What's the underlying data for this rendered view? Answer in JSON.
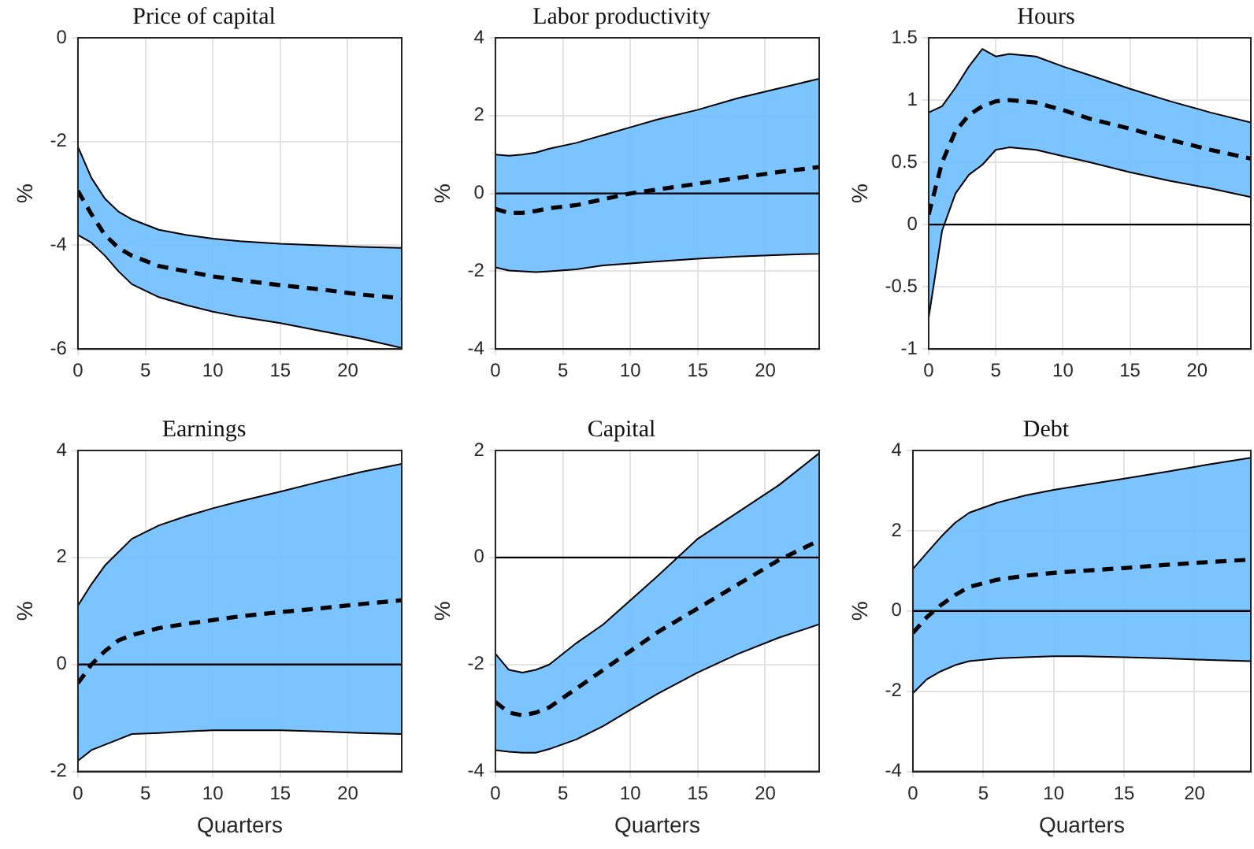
{
  "chart_data": [
    {
      "type": "line",
      "title": "Price of capital",
      "ylabel": "%",
      "xlim": [
        0,
        24
      ],
      "xticks": [
        0,
        5,
        10,
        15,
        20
      ],
      "ylim": [
        -6,
        0
      ],
      "yticks": [
        -6,
        -4,
        -2,
        0
      ],
      "grid": true,
      "legend": false,
      "x": [
        0,
        1,
        2,
        3,
        4,
        6,
        8,
        10,
        12,
        15,
        18,
        21,
        24
      ],
      "series": [
        {
          "color": "#000000",
          "line_style": "dashed",
          "values": [
            -2.95,
            -3.4,
            -3.8,
            -4.05,
            -4.2,
            -4.4,
            -4.5,
            -4.6,
            -4.67,
            -4.77,
            -4.85,
            -4.95,
            -5.02
          ],
          "upper": [
            -2.1,
            -2.7,
            -3.1,
            -3.35,
            -3.5,
            -3.7,
            -3.8,
            -3.87,
            -3.92,
            -3.97,
            -4.0,
            -4.03,
            -4.05
          ],
          "lower": [
            -3.8,
            -3.95,
            -4.2,
            -4.5,
            -4.75,
            -5.0,
            -5.15,
            -5.28,
            -5.38,
            -5.5,
            -5.65,
            -5.8,
            -5.98
          ]
        }
      ]
    },
    {
      "type": "line",
      "title": "Labor productivity",
      "ylabel": "%",
      "xlim": [
        0,
        24
      ],
      "xticks": [
        0,
        5,
        10,
        15,
        20
      ],
      "ylim": [
        -4,
        4
      ],
      "yticks": [
        -4,
        -2,
        0,
        2,
        4
      ],
      "grid": true,
      "legend": false,
      "x": [
        0,
        1,
        2,
        3,
        4,
        6,
        8,
        10,
        12,
        15,
        18,
        21,
        24
      ],
      "ref_lines": [
        {
          "axis": "y",
          "value": 0,
          "color": "#000000"
        }
      ],
      "series": [
        {
          "color": "#000000",
          "line_style": "dashed",
          "values": [
            -0.4,
            -0.5,
            -0.5,
            -0.45,
            -0.38,
            -0.3,
            -0.15,
            0,
            0.1,
            0.25,
            0.4,
            0.55,
            0.68
          ],
          "upper": [
            1.0,
            0.97,
            1.0,
            1.05,
            1.15,
            1.3,
            1.5,
            1.7,
            1.9,
            2.15,
            2.45,
            2.7,
            2.95
          ],
          "lower": [
            -1.9,
            -1.98,
            -2.0,
            -2.02,
            -2.0,
            -1.95,
            -1.85,
            -1.8,
            -1.75,
            -1.68,
            -1.62,
            -1.58,
            -1.55
          ]
        }
      ]
    },
    {
      "type": "line",
      "title": "Hours",
      "ylabel": "%",
      "xlim": [
        0,
        24
      ],
      "xticks": [
        0,
        5,
        10,
        15,
        20
      ],
      "ylim": [
        -1,
        1.5
      ],
      "yticks": [
        -1,
        -0.5,
        0,
        0.5,
        1,
        1.5
      ],
      "grid": true,
      "legend": false,
      "x": [
        0,
        1,
        2,
        3,
        4,
        5,
        6,
        8,
        10,
        12,
        15,
        18,
        21,
        24
      ],
      "ref_lines": [
        {
          "axis": "y",
          "value": 0,
          "color": "#000000"
        }
      ],
      "series": [
        {
          "color": "#000000",
          "line_style": "dashed",
          "values": [
            0.08,
            0.5,
            0.75,
            0.88,
            0.95,
            0.99,
            1.0,
            0.98,
            0.92,
            0.85,
            0.77,
            0.68,
            0.6,
            0.53
          ],
          "upper": [
            0.9,
            0.95,
            1.1,
            1.27,
            1.41,
            1.35,
            1.37,
            1.35,
            1.27,
            1.2,
            1.09,
            0.99,
            0.9,
            0.82
          ],
          "lower": [
            -0.75,
            -0.05,
            0.25,
            0.4,
            0.48,
            0.6,
            0.62,
            0.6,
            0.55,
            0.5,
            0.42,
            0.35,
            0.29,
            0.22
          ]
        }
      ]
    },
    {
      "type": "line",
      "title": "Earnings",
      "xlabel": "Quarters",
      "ylabel": "%",
      "xlim": [
        0,
        24
      ],
      "xticks": [
        0,
        5,
        10,
        15,
        20
      ],
      "ylim": [
        -2,
        4
      ],
      "yticks": [
        -2,
        0,
        2,
        4
      ],
      "grid": true,
      "legend": false,
      "x": [
        0,
        1,
        2,
        3,
        4,
        6,
        8,
        10,
        12,
        15,
        18,
        21,
        24
      ],
      "ref_lines": [
        {
          "axis": "y",
          "value": 0,
          "color": "#000000"
        }
      ],
      "series": [
        {
          "color": "#000000",
          "line_style": "dashed",
          "values": [
            -0.35,
            0.0,
            0.25,
            0.45,
            0.55,
            0.68,
            0.76,
            0.83,
            0.9,
            0.98,
            1.05,
            1.13,
            1.2
          ],
          "upper": [
            1.1,
            1.5,
            1.85,
            2.1,
            2.35,
            2.6,
            2.77,
            2.92,
            3.05,
            3.23,
            3.42,
            3.6,
            3.75
          ],
          "lower": [
            -1.8,
            -1.6,
            -1.5,
            -1.4,
            -1.3,
            -1.28,
            -1.25,
            -1.23,
            -1.23,
            -1.23,
            -1.25,
            -1.28,
            -1.3
          ]
        }
      ]
    },
    {
      "type": "line",
      "title": "Capital",
      "xlabel": "Quarters",
      "ylabel": "%",
      "xlim": [
        0,
        24
      ],
      "xticks": [
        0,
        5,
        10,
        15,
        20
      ],
      "ylim": [
        -4,
        2
      ],
      "yticks": [
        -4,
        -2,
        0,
        2
      ],
      "grid": true,
      "legend": false,
      "x": [
        0,
        1,
        2,
        3,
        4,
        6,
        8,
        10,
        12,
        15,
        18,
        21,
        24
      ],
      "ref_lines": [
        {
          "axis": "y",
          "value": 0,
          "color": "#000000"
        }
      ],
      "series": [
        {
          "color": "#000000",
          "line_style": "dashed",
          "values": [
            -2.7,
            -2.9,
            -2.95,
            -2.9,
            -2.8,
            -2.45,
            -2.1,
            -1.75,
            -1.4,
            -0.95,
            -0.5,
            -0.05,
            0.32
          ],
          "upper": [
            -1.8,
            -2.1,
            -2.15,
            -2.1,
            -2.0,
            -1.6,
            -1.25,
            -0.8,
            -0.35,
            0.35,
            0.85,
            1.35,
            1.95
          ],
          "lower": [
            -3.6,
            -3.63,
            -3.65,
            -3.65,
            -3.58,
            -3.4,
            -3.15,
            -2.85,
            -2.55,
            -2.15,
            -1.8,
            -1.5,
            -1.25
          ]
        }
      ]
    },
    {
      "type": "line",
      "title": "Debt",
      "xlabel": "Quarters",
      "ylabel": "%",
      "xlim": [
        0,
        24
      ],
      "xticks": [
        0,
        5,
        10,
        15,
        20
      ],
      "ylim": [
        -4,
        4
      ],
      "yticks": [
        -4,
        -2,
        0,
        2,
        4
      ],
      "grid": true,
      "legend": false,
      "x": [
        0,
        1,
        2,
        3,
        4,
        6,
        8,
        10,
        12,
        15,
        18,
        21,
        24
      ],
      "ref_lines": [
        {
          "axis": "y",
          "value": 0,
          "color": "#000000"
        }
      ],
      "series": [
        {
          "color": "#000000",
          "line_style": "dashed",
          "values": [
            -0.55,
            -0.15,
            0.15,
            0.4,
            0.6,
            0.78,
            0.88,
            0.95,
            1.0,
            1.07,
            1.15,
            1.22,
            1.28
          ],
          "upper": [
            1.05,
            1.45,
            1.85,
            2.2,
            2.45,
            2.7,
            2.88,
            3.02,
            3.13,
            3.3,
            3.47,
            3.65,
            3.82
          ],
          "lower": [
            -2.05,
            -1.7,
            -1.5,
            -1.35,
            -1.25,
            -1.18,
            -1.15,
            -1.13,
            -1.13,
            -1.15,
            -1.18,
            -1.22,
            -1.25
          ]
        }
      ]
    }
  ]
}
